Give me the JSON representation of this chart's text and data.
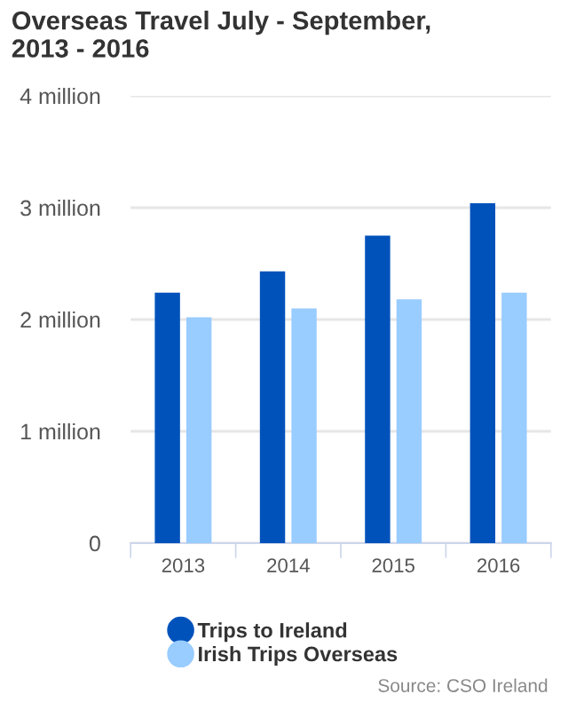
{
  "chart_data": {
    "type": "bar",
    "title": "Overseas Travel July - September,\n2013 - 2016",
    "categories": [
      "2013",
      "2014",
      "2015",
      "2016"
    ],
    "series": [
      {
        "name": "Trips to Ireland",
        "color": "#0052bb",
        "values": [
          2.24,
          2.43,
          2.75,
          3.04
        ]
      },
      {
        "name": "Irish Trips Overseas",
        "color": "#99ccff",
        "values": [
          2.02,
          2.1,
          2.18,
          2.24
        ]
      }
    ],
    "ylim": [
      0,
      4
    ],
    "yticks": [
      0,
      {
        "value": 1,
        "label": "1 million"
      },
      {
        "value": 2,
        "label": "2 million"
      },
      {
        "value": 3,
        "label": "3 million"
      },
      {
        "value": 4,
        "label": "4 million"
      }
    ],
    "grid": "y",
    "legend": "bottom",
    "annotations": [
      "Source: CSO Ireland"
    ]
  }
}
